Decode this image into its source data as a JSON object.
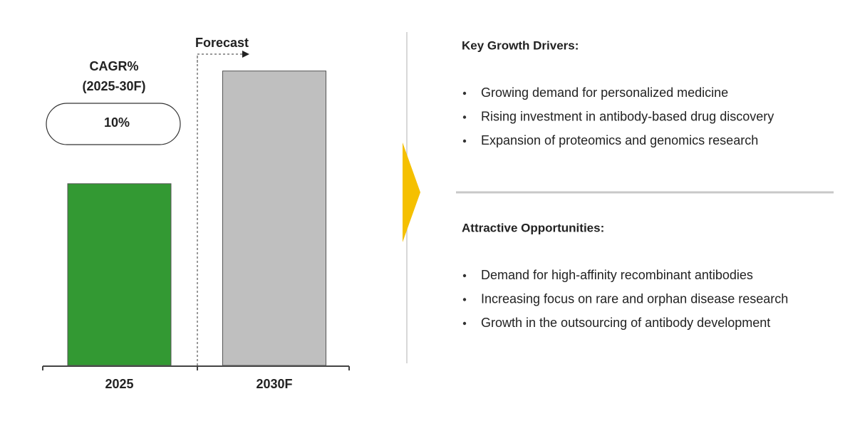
{
  "chart_data": {
    "type": "bar",
    "categories": [
      "2025",
      "2030F"
    ],
    "values": [
      100,
      162
    ],
    "colors": [
      "#339933",
      "#bfbfbf"
    ],
    "ylim": [
      0,
      165
    ],
    "forecast_label": "Forecast",
    "cagr_title": [
      "CAGR%",
      "(2025-30F)"
    ],
    "cagr_value": "10%"
  },
  "sections": [
    {
      "title": "Key Growth Drivers:",
      "items": [
        "Growing demand for personalized medicine",
        "Rising investment in antibody-based drug discovery",
        "Expansion of proteomics and genomics research"
      ]
    },
    {
      "title": "Attractive Opportunities:",
      "items": [
        "Demand for high-affinity recombinant antibodies",
        "Increasing focus on rare and orphan disease research",
        "Growth in the outsourcing of antibody development"
      ]
    }
  ]
}
